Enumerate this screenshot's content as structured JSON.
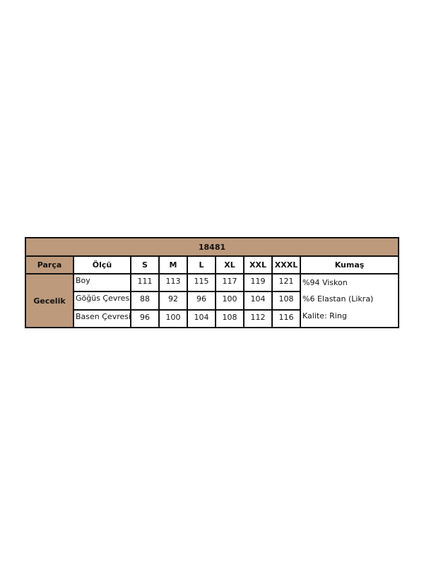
{
  "table": {
    "title": "18481",
    "headers": [
      "Parça",
      "Ölçü",
      "S",
      "M",
      "L",
      "XL",
      "XXL",
      "XXXL",
      "Kumaş"
    ],
    "part": "Gecelik",
    "rows": [
      {
        "label": "Boy",
        "values": [
          "111",
          "113",
          "115",
          "117",
          "119",
          "121"
        ]
      },
      {
        "label": "Göğüs Çevresi",
        "values": [
          "88",
          "92",
          "96",
          "100",
          "104",
          "108"
        ]
      },
      {
        "label": "Basen Çevresi",
        "values": [
          "96",
          "100",
          "104",
          "108",
          "112",
          "116"
        ]
      }
    ],
    "fabric": [
      "%94 Viskon",
      "%6 Elastan (Likra)",
      "Kalite: Ring"
    ],
    "colors": {
      "header_fill": "#bd9a7b",
      "border": "#111111"
    }
  }
}
